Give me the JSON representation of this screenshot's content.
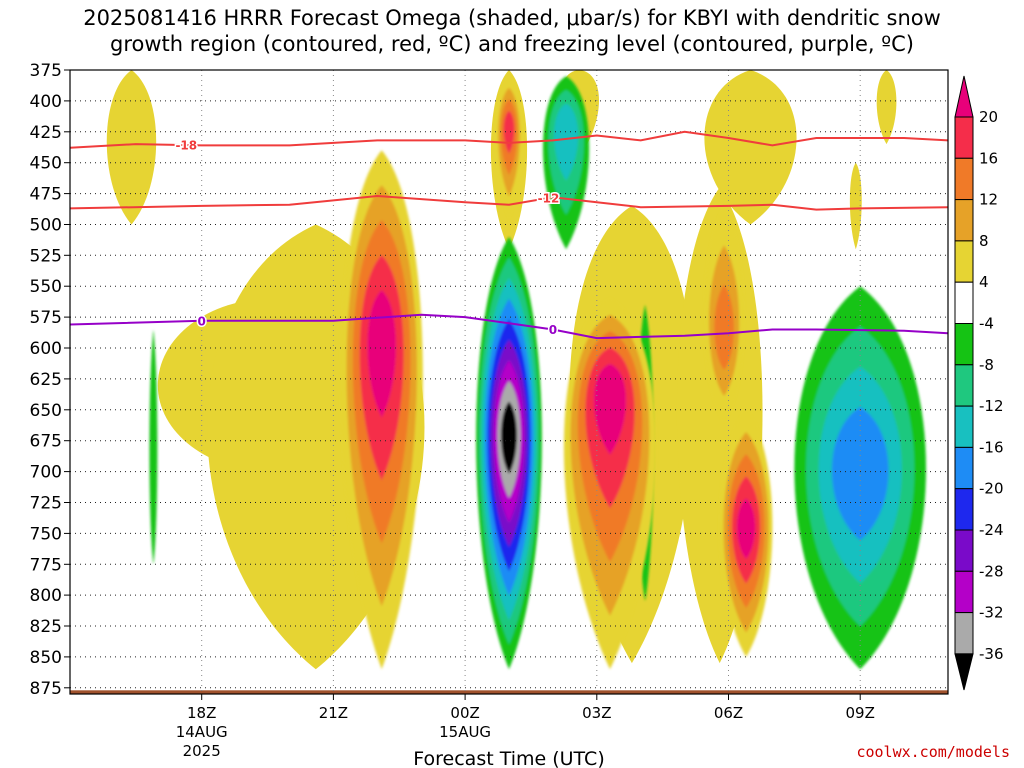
{
  "header": {
    "title_line1": "2025081416 HRRR Forecast Omega (shaded, μbar/s) for KBYI with dendritic snow",
    "title_line2": "growth region (contoured, red, ºC) and freezing level (contoured, purple, ºC)"
  },
  "footer": {
    "credit": "coolwx.com/models"
  },
  "chart_data": {
    "type": "heatmap",
    "xlabel": "Forecast Time (UTC)",
    "ylabel": "",
    "x_range_hours_from_18z": [
      -3.0,
      17.0
    ],
    "x_ticks": [
      {
        "hour": 0,
        "lines": [
          "18Z",
          "14AUG",
          "2025"
        ]
      },
      {
        "hour": 3,
        "lines": [
          "21Z"
        ]
      },
      {
        "hour": 6,
        "lines": [
          "00Z",
          "15AUG"
        ]
      },
      {
        "hour": 9,
        "lines": [
          "03Z"
        ]
      },
      {
        "hour": 12,
        "lines": [
          "06Z"
        ]
      },
      {
        "hour": 15,
        "lines": [
          "09Z"
        ]
      }
    ],
    "y_range_mb": [
      375,
      880
    ],
    "y_ticks": [
      375,
      400,
      425,
      450,
      475,
      500,
      525,
      550,
      575,
      600,
      625,
      650,
      675,
      700,
      725,
      750,
      775,
      800,
      825,
      850,
      875
    ],
    "grid": true,
    "colorbar": {
      "labels": [
        20,
        16,
        12,
        8,
        4,
        -4,
        -8,
        -12,
        -16,
        -20,
        -24,
        -28,
        -32,
        -36
      ],
      "bins": [
        {
          "range": "20+",
          "color": "#e8007a"
        },
        {
          "range": "16 to 20",
          "color": "#f52d4a"
        },
        {
          "range": "12 to 16",
          "color": "#f07a28"
        },
        {
          "range": "8 to 12",
          "color": "#e6a228"
        },
        {
          "range": "4 to 8",
          "color": "#e6d433"
        },
        {
          "range": "-4 to 4",
          "color": "#ffffff"
        },
        {
          "range": "-8 to -4",
          "color": "#15c314"
        },
        {
          "range": "-12 to -8",
          "color": "#1fc87f"
        },
        {
          "range": "-16 to -12",
          "color": "#18c0c0"
        },
        {
          "range": "-20 to -16",
          "color": "#1e8cf5"
        },
        {
          "range": "-24 to -20",
          "color": "#1e28ee"
        },
        {
          "range": "-28 to -24",
          "color": "#7a0ac9"
        },
        {
          "range": "-32 to -28",
          "color": "#b400c8"
        },
        {
          "range": "-36 to -32",
          "color": "#aaaaaa"
        },
        {
          "range": "below -36",
          "color": "#000000"
        }
      ]
    },
    "contours": [
      {
        "name": "-18",
        "color": "#f03c3c",
        "points": [
          [
            -3.0,
            438
          ],
          [
            -1.5,
            435
          ],
          [
            0.0,
            436
          ],
          [
            2.0,
            436
          ],
          [
            4.0,
            432
          ],
          [
            6.0,
            432
          ],
          [
            7.0,
            434
          ],
          [
            8.0,
            432
          ],
          [
            9.0,
            428
          ],
          [
            10.0,
            432
          ],
          [
            11.0,
            425
          ],
          [
            12.0,
            430
          ],
          [
            13.0,
            436
          ],
          [
            14.0,
            430
          ],
          [
            16.0,
            430
          ],
          [
            17.0,
            432
          ]
        ]
      },
      {
        "name": "-12",
        "color": "#f03c3c",
        "points": [
          [
            -3.0,
            487
          ],
          [
            0.0,
            485
          ],
          [
            2.0,
            484
          ],
          [
            4.0,
            477
          ],
          [
            6.0,
            482
          ],
          [
            7.0,
            484
          ],
          [
            8.0,
            478
          ],
          [
            9.0,
            482
          ],
          [
            10.0,
            486
          ],
          [
            12.0,
            485
          ],
          [
            13.0,
            484
          ],
          [
            14.0,
            488
          ],
          [
            15.0,
            487
          ],
          [
            17.0,
            486
          ]
        ]
      },
      {
        "name": "0",
        "color": "#9600c8",
        "points": [
          [
            -3.0,
            581
          ],
          [
            0.0,
            578
          ],
          [
            3.0,
            578
          ],
          [
            5.0,
            573
          ],
          [
            6.0,
            575
          ],
          [
            7.0,
            580
          ],
          [
            8.0,
            585
          ],
          [
            9.0,
            592
          ],
          [
            10.0,
            591
          ],
          [
            11.0,
            590
          ],
          [
            12.0,
            588
          ],
          [
            13.0,
            585
          ],
          [
            14.0,
            585
          ],
          [
            16.0,
            586
          ],
          [
            17.0,
            588
          ]
        ]
      }
    ],
    "shaded_features": [
      {
        "kind": "ascent core",
        "center": [
          4.1,
          590
        ],
        "x_half_width_h": 1.25,
        "y_extent_mb": [
          440,
          860
        ],
        "peak_level": "20+"
      },
      {
        "kind": "ascent core",
        "center": [
          9.3,
          630
        ],
        "x_half_width_h": 1.4,
        "y_extent_mb": [
          560,
          860
        ],
        "peak_level": "20+"
      },
      {
        "kind": "ascent",
        "center": [
          12.4,
          745
        ],
        "x_half_width_h": 0.8,
        "y_extent_mb": [
          650,
          850
        ],
        "peak_level": "20+"
      },
      {
        "kind": "ascent",
        "center": [
          11.9,
          590
        ],
        "x_half_width_h": 0.6,
        "y_extent_mb": [
          485,
          660
        ],
        "peak_level": "12 to 16"
      },
      {
        "kind": "ascent",
        "center": [
          7.0,
          420
        ],
        "x_half_width_h": 0.4,
        "y_extent_mb": [
          380,
          495
        ],
        "peak_level": "16 to 20"
      },
      {
        "kind": "descent core",
        "center": [
          7.0,
          670
        ],
        "x_half_width_h": 1.0,
        "y_extent_mb": [
          510,
          860
        ],
        "peak_level": "below -36"
      },
      {
        "kind": "descent",
        "center": [
          15.0,
          700
        ],
        "x_half_width_h": 2.0,
        "y_extent_mb": [
          550,
          860
        ],
        "peak_level": "-20 to -16"
      },
      {
        "kind": "descent",
        "center": [
          8.3,
          420
        ],
        "x_half_width_h": 0.7,
        "y_extent_mb": [
          380,
          520
        ],
        "peak_level": "-16 to -12"
      },
      {
        "kind": "descent",
        "center": [
          10.1,
          690
        ],
        "x_half_width_h": 0.25,
        "y_extent_mb": [
          565,
          805
        ],
        "peak_level": "-12 to -8"
      },
      {
        "kind": "descent",
        "center": [
          -1.1,
          700
        ],
        "x_half_width_h": 0.12,
        "y_extent_mb": [
          585,
          775
        ],
        "peak_level": "-8 to -4"
      }
    ],
    "ground": {
      "top_mb": 877,
      "color": "#a0522d"
    }
  }
}
